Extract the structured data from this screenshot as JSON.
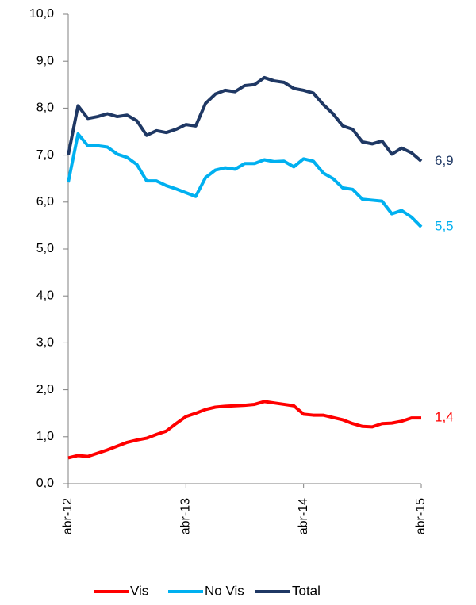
{
  "chart_data": {
    "type": "line",
    "categories": [
      "abr-12",
      null,
      null,
      null,
      null,
      null,
      null,
      null,
      null,
      null,
      null,
      null,
      "abr-13",
      null,
      null,
      null,
      null,
      null,
      null,
      null,
      null,
      null,
      null,
      null,
      "abr-14",
      null,
      null,
      null,
      null,
      null,
      null,
      null,
      null,
      null,
      null,
      null,
      "abr-15"
    ],
    "series": [
      {
        "name": "Vis",
        "color": "#ff0000",
        "values": [
          0.55,
          0.6,
          0.58,
          0.65,
          0.72,
          0.8,
          0.88,
          0.93,
          0.97,
          1.05,
          1.12,
          1.28,
          1.43,
          1.5,
          1.58,
          1.63,
          1.65,
          1.66,
          1.67,
          1.69,
          1.75,
          1.72,
          1.69,
          1.66,
          1.48,
          1.46,
          1.46,
          1.41,
          1.36,
          1.28,
          1.22,
          1.21,
          1.28,
          1.29,
          1.33,
          1.4,
          1.4
        ],
        "value_labels": [
          null,
          null,
          null,
          null,
          null,
          null,
          null,
          null,
          null,
          null,
          null,
          null,
          null,
          null,
          null,
          null,
          null,
          null,
          null,
          null,
          null,
          null,
          null,
          null,
          null,
          null,
          null,
          null,
          null,
          null,
          null,
          null,
          null,
          null,
          null,
          null,
          "1,4"
        ]
      },
      {
        "name": "No Vis",
        "color": "#00b0f0",
        "values": [
          6.42,
          7.45,
          7.2,
          7.2,
          7.17,
          7.02,
          6.95,
          6.8,
          6.45,
          6.45,
          6.35,
          6.28,
          6.2,
          6.12,
          6.52,
          6.68,
          6.73,
          6.7,
          6.82,
          6.82,
          6.9,
          6.86,
          6.87,
          6.75,
          6.92,
          6.87,
          6.62,
          6.5,
          6.3,
          6.27,
          6.06,
          6.04,
          6.02,
          5.75,
          5.82,
          5.68,
          5.47
        ],
        "value_labels": [
          null,
          null,
          null,
          null,
          null,
          null,
          null,
          null,
          null,
          null,
          null,
          null,
          null,
          null,
          null,
          null,
          null,
          null,
          null,
          null,
          null,
          null,
          null,
          null,
          null,
          null,
          null,
          null,
          null,
          null,
          null,
          null,
          null,
          null,
          null,
          null,
          "5,5"
        ]
      },
      {
        "name": "Total",
        "color": "#1f3864",
        "values": [
          7.0,
          8.05,
          7.78,
          7.82,
          7.88,
          7.82,
          7.85,
          7.73,
          7.42,
          7.52,
          7.48,
          7.55,
          7.65,
          7.62,
          8.1,
          8.3,
          8.38,
          8.35,
          8.48,
          8.5,
          8.65,
          8.58,
          8.55,
          8.42,
          8.38,
          8.32,
          8.08,
          7.88,
          7.62,
          7.55,
          7.28,
          7.24,
          7.3,
          7.02,
          7.15,
          7.05,
          6.87
        ],
        "value_labels": [
          null,
          null,
          null,
          null,
          null,
          null,
          null,
          null,
          null,
          null,
          null,
          null,
          null,
          null,
          null,
          null,
          null,
          null,
          null,
          null,
          null,
          null,
          null,
          null,
          null,
          null,
          null,
          null,
          null,
          null,
          null,
          null,
          null,
          null,
          null,
          null,
          "6,9"
        ]
      }
    ],
    "ylim": [
      0,
      10
    ],
    "yticks": [
      {
        "value": 0,
        "label": "0,0"
      },
      {
        "value": 1,
        "label": "1,0"
      },
      {
        "value": 2,
        "label": "2,0"
      },
      {
        "value": 3,
        "label": "3,0"
      },
      {
        "value": 4,
        "label": "4,0"
      },
      {
        "value": 5,
        "label": "5,0"
      },
      {
        "value": 6,
        "label": "6,0"
      },
      {
        "value": 7,
        "label": "7,0"
      },
      {
        "value": 8,
        "label": "8,0"
      },
      {
        "value": 9,
        "label": "9,0"
      },
      {
        "value": 10,
        "label": "10,0"
      }
    ],
    "legend": "bottom"
  }
}
